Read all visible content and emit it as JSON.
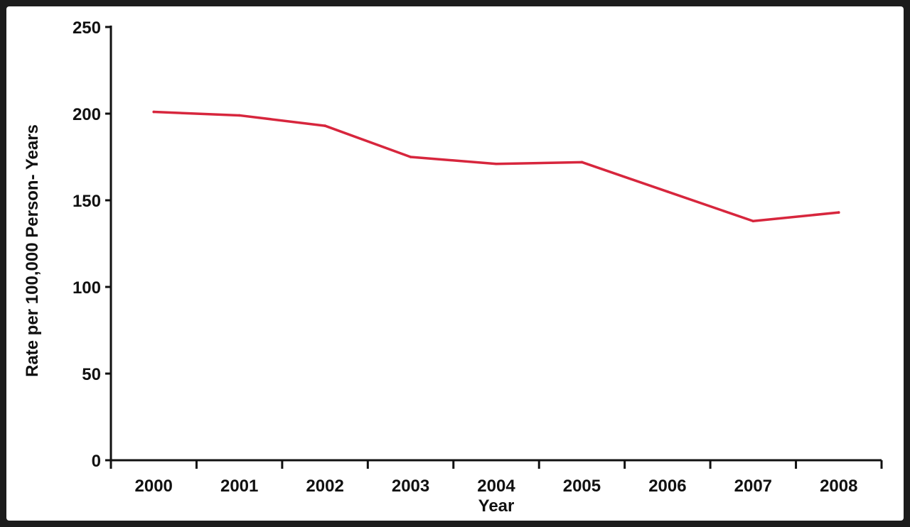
{
  "chart_data": {
    "type": "line",
    "title": "",
    "xlabel": "Year",
    "ylabel": "Rate per 100,000 Person- Years",
    "ylim": [
      0,
      250
    ],
    "yticks": [
      0,
      50,
      100,
      150,
      200,
      250
    ],
    "categories": [
      "2000",
      "2001",
      "2002",
      "2003",
      "2004",
      "2005",
      "2006",
      "2007",
      "2008"
    ],
    "series": [
      {
        "values": [
          201,
          199,
          193,
          175,
          171,
          172,
          155,
          138,
          143
        ],
        "color": "#d7263d"
      }
    ],
    "grid": false,
    "legend": "none"
  },
  "colors": {
    "background": "#ffffff",
    "frame": "#1c1c1c",
    "axis": "#111111"
  }
}
